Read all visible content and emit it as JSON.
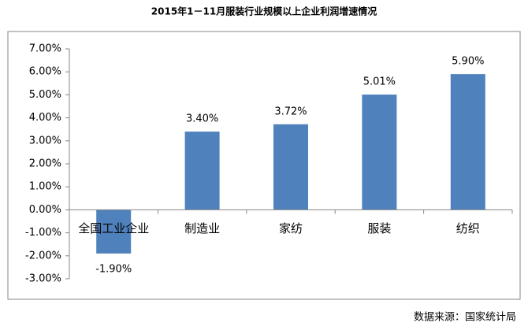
{
  "chart_data": {
    "type": "bar",
    "title": "2015年1－11月服装行业规模以上企业利润增速情况",
    "categories": [
      "全国工业企业",
      "制造业",
      "家纺",
      "服装",
      "纺织"
    ],
    "values": [
      -1.9,
      3.4,
      3.72,
      5.01,
      5.9
    ],
    "value_labels": [
      "-1.90%",
      "3.40%",
      "3.72%",
      "5.01%",
      "5.90%"
    ],
    "color": "#4f81bd",
    "ylim": [
      -3,
      7
    ],
    "yticks": [
      {
        "value": -3,
        "label": "-3.00%"
      },
      {
        "value": -2,
        "label": "-2.00%"
      },
      {
        "value": -1,
        "label": "-1.00%"
      },
      {
        "value": 0,
        "label": "0.00%"
      },
      {
        "value": 1,
        "label": "1.00%"
      },
      {
        "value": 2,
        "label": "2.00%"
      },
      {
        "value": 3,
        "label": "3.00%"
      },
      {
        "value": 4,
        "label": "4.00%"
      },
      {
        "value": 5,
        "label": "5.00%"
      },
      {
        "value": 6,
        "label": "6.00%"
      },
      {
        "value": 7,
        "label": "7.00%"
      }
    ],
    "grid": false,
    "source": "数据来源：国家统计局"
  }
}
